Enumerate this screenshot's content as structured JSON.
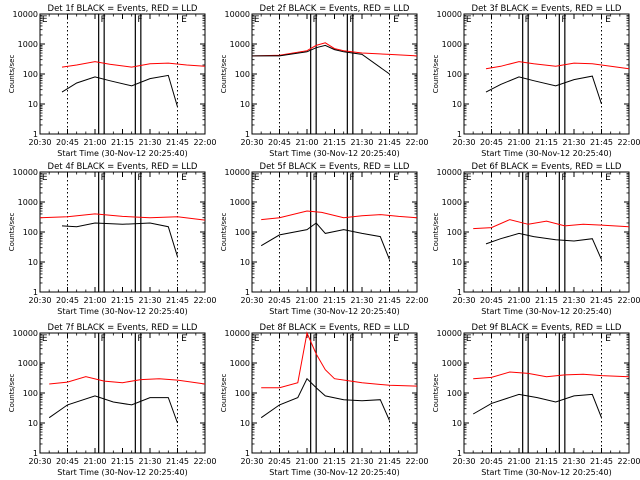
{
  "figure": {
    "xlabel": "Start Time (30-Nov-12 20:25:40)",
    "ylabel": "Counts/sec",
    "x_ticks": [
      "20:30",
      "20:45",
      "21:00",
      "21:15",
      "21:30",
      "21:45",
      "22:00"
    ],
    "y_ticks": [
      "1",
      "10",
      "100",
      "1000",
      "10000"
    ],
    "flag_labels": [
      "E",
      "F",
      "F",
      "E"
    ]
  },
  "chart_data": [
    {
      "type": "line",
      "title": "Det 1f BLACK = Events, RED = LLD",
      "xlim": [
        "20:30",
        "22:00"
      ],
      "ylim": [
        1,
        10000
      ],
      "yscale": "log",
      "series": [
        {
          "color": "#ff0000",
          "x": [
            "20:42",
            "20:50",
            "21:00",
            "21:08",
            "21:20",
            "21:30",
            "21:40",
            "21:50",
            "22:00"
          ],
          "values": [
            170,
            200,
            260,
            210,
            170,
            220,
            230,
            200,
            180
          ]
        },
        {
          "color": "#000000",
          "x": [
            "20:42",
            "20:50",
            "21:00",
            "21:08",
            "21:20",
            "21:30",
            "21:40",
            "21:45"
          ],
          "values": [
            25,
            50,
            80,
            60,
            40,
            70,
            90,
            8
          ]
        }
      ]
    },
    {
      "type": "line",
      "title": "Det 2f BLACK = Events, RED = LLD",
      "xlim": [
        "20:30",
        "22:00"
      ],
      "ylim": [
        1,
        10000
      ],
      "yscale": "log",
      "series": [
        {
          "color": "#ff0000",
          "x": [
            "20:30",
            "20:45",
            "21:00",
            "21:05",
            "21:10",
            "21:15",
            "21:20",
            "21:30",
            "21:45",
            "22:00"
          ],
          "values": [
            400,
            420,
            600,
            900,
            1100,
            700,
            600,
            500,
            450,
            400
          ]
        },
        {
          "color": "#000000",
          "x": [
            "20:30",
            "20:45",
            "21:00",
            "21:05",
            "21:10",
            "21:15",
            "21:20",
            "21:30",
            "21:45"
          ],
          "values": [
            400,
            400,
            550,
            750,
            900,
            650,
            550,
            450,
            100
          ]
        }
      ]
    },
    {
      "type": "line",
      "title": "Det 3f BLACK = Events, RED = LLD",
      "xlim": [
        "20:30",
        "22:00"
      ],
      "ylim": [
        1,
        10000
      ],
      "yscale": "log",
      "series": [
        {
          "color": "#ff0000",
          "x": [
            "20:42",
            "20:50",
            "21:00",
            "21:08",
            "21:20",
            "21:30",
            "21:40",
            "21:50",
            "22:00"
          ],
          "values": [
            150,
            180,
            260,
            220,
            180,
            230,
            220,
            180,
            150
          ]
        },
        {
          "color": "#000000",
          "x": [
            "20:42",
            "20:50",
            "21:00",
            "21:08",
            "21:20",
            "21:30",
            "21:40",
            "21:45"
          ],
          "values": [
            25,
            45,
            80,
            60,
            40,
            65,
            85,
            10
          ]
        }
      ]
    },
    {
      "type": "line",
      "title": "Det 4f BLACK = Events, RED = LLD",
      "xlim": [
        "20:30",
        "22:00"
      ],
      "ylim": [
        1,
        10000
      ],
      "yscale": "log",
      "series": [
        {
          "color": "#ff0000",
          "x": [
            "20:30",
            "20:45",
            "21:00",
            "21:15",
            "21:30",
            "21:45",
            "22:00"
          ],
          "values": [
            300,
            320,
            400,
            330,
            300,
            320,
            250
          ]
        },
        {
          "color": "#000000",
          "x": [
            "20:42",
            "20:50",
            "21:00",
            "21:15",
            "21:30",
            "21:40",
            "21:45"
          ],
          "values": [
            160,
            150,
            200,
            180,
            200,
            150,
            15
          ]
        }
      ]
    },
    {
      "type": "line",
      "title": "Det 5f BLACK = Events, RED = LLD",
      "xlim": [
        "20:30",
        "22:00"
      ],
      "ylim": [
        1,
        10000
      ],
      "yscale": "log",
      "series": [
        {
          "color": "#ff0000",
          "x": [
            "20:35",
            "20:45",
            "21:00",
            "21:08",
            "21:20",
            "21:30",
            "21:40",
            "21:50",
            "22:00"
          ],
          "values": [
            260,
            300,
            500,
            450,
            300,
            350,
            380,
            330,
            300
          ]
        },
        {
          "color": "#000000",
          "x": [
            "20:35",
            "20:45",
            "21:00",
            "21:05",
            "21:10",
            "21:20",
            "21:30",
            "21:40",
            "21:45"
          ],
          "values": [
            35,
            80,
            120,
            200,
            90,
            120,
            90,
            70,
            12
          ]
        }
      ]
    },
    {
      "type": "line",
      "title": "Det 6f BLACK = Events, RED = LLD",
      "xlim": [
        "20:30",
        "22:00"
      ],
      "ylim": [
        1,
        10000
      ],
      "yscale": "log",
      "series": [
        {
          "color": "#ff0000",
          "x": [
            "20:35",
            "20:45",
            "20:55",
            "21:05",
            "21:15",
            "21:25",
            "21:35",
            "21:45",
            "22:00"
          ],
          "values": [
            130,
            140,
            260,
            180,
            230,
            160,
            180,
            170,
            150
          ]
        },
        {
          "color": "#000000",
          "x": [
            "20:42",
            "20:50",
            "21:00",
            "21:08",
            "21:20",
            "21:30",
            "21:40",
            "21:45"
          ],
          "values": [
            40,
            60,
            90,
            70,
            55,
            50,
            60,
            12
          ]
        }
      ]
    },
    {
      "type": "line",
      "title": "Det 7f BLACK = Events, RED = LLD",
      "xlim": [
        "20:30",
        "22:00"
      ],
      "ylim": [
        1,
        10000
      ],
      "yscale": "log",
      "series": [
        {
          "color": "#ff0000",
          "x": [
            "20:35",
            "20:45",
            "20:55",
            "21:05",
            "21:15",
            "21:25",
            "21:35",
            "21:45",
            "22:00"
          ],
          "values": [
            200,
            230,
            350,
            250,
            220,
            280,
            300,
            270,
            200
          ]
        },
        {
          "color": "#000000",
          "x": [
            "20:35",
            "20:45",
            "21:00",
            "21:10",
            "21:20",
            "21:30",
            "21:40",
            "21:45"
          ],
          "values": [
            15,
            40,
            80,
            50,
            40,
            70,
            70,
            10
          ]
        }
      ]
    },
    {
      "type": "line",
      "title": "Det 8f BLACK = Events, RED = LLD",
      "xlim": [
        "20:30",
        "22:00"
      ],
      "ylim": [
        1,
        10000
      ],
      "yscale": "log",
      "series": [
        {
          "color": "#ff0000",
          "x": [
            "20:35",
            "20:45",
            "20:55",
            "21:00",
            "21:05",
            "21:10",
            "21:15",
            "21:30",
            "21:45",
            "22:00"
          ],
          "values": [
            150,
            150,
            220,
            10000,
            2000,
            600,
            300,
            220,
            180,
            170
          ]
        },
        {
          "color": "#000000",
          "x": [
            "20:35",
            "20:45",
            "20:55",
            "21:00",
            "21:05",
            "21:10",
            "21:20",
            "21:30",
            "21:40",
            "21:45"
          ],
          "values": [
            15,
            40,
            70,
            300,
            150,
            80,
            60,
            55,
            60,
            12
          ]
        }
      ]
    },
    {
      "type": "line",
      "title": "Det 9f BLACK = Events, RED = LLD",
      "xlim": [
        "20:30",
        "22:00"
      ],
      "ylim": [
        1,
        10000
      ],
      "yscale": "log",
      "series": [
        {
          "color": "#ff0000",
          "x": [
            "20:35",
            "20:45",
            "20:55",
            "21:05",
            "21:15",
            "21:25",
            "21:35",
            "21:45",
            "22:00"
          ],
          "values": [
            300,
            330,
            500,
            450,
            350,
            400,
            420,
            380,
            350
          ]
        },
        {
          "color": "#000000",
          "x": [
            "20:35",
            "20:45",
            "21:00",
            "21:10",
            "21:20",
            "21:30",
            "21:40",
            "21:45"
          ],
          "values": [
            20,
            45,
            90,
            70,
            50,
            80,
            90,
            15
          ]
        }
      ]
    }
  ]
}
